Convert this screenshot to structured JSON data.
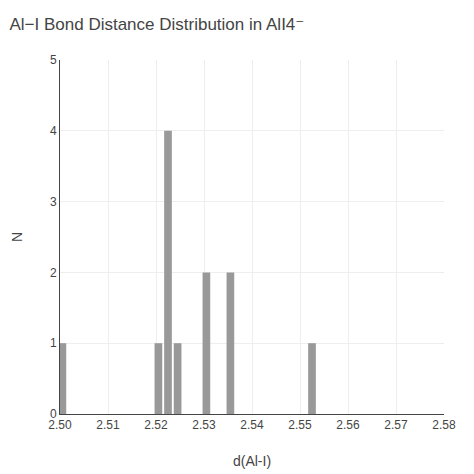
{
  "chart_data": {
    "type": "bar",
    "title": "Al−I Bond Distance Distribution in AlI4⁻",
    "xlabel": "d(Al-I)",
    "ylabel": "N",
    "x": [
      2.5005,
      2.5205,
      2.5225,
      2.5245,
      2.5305,
      2.5355,
      2.5525
    ],
    "values": [
      1,
      1,
      4,
      1,
      2,
      2,
      1
    ],
    "color": "#999999",
    "xlim": [
      2.5,
      2.58
    ],
    "ylim": [
      0,
      5
    ],
    "xticks": [
      {
        "value": 2.5,
        "label": "2.50"
      },
      2.51,
      2.52,
      2.53,
      2.54,
      2.55,
      2.56,
      2.57,
      2.58
    ],
    "yticks": [
      0,
      1,
      2,
      3,
      4,
      5
    ],
    "grid": true
  }
}
